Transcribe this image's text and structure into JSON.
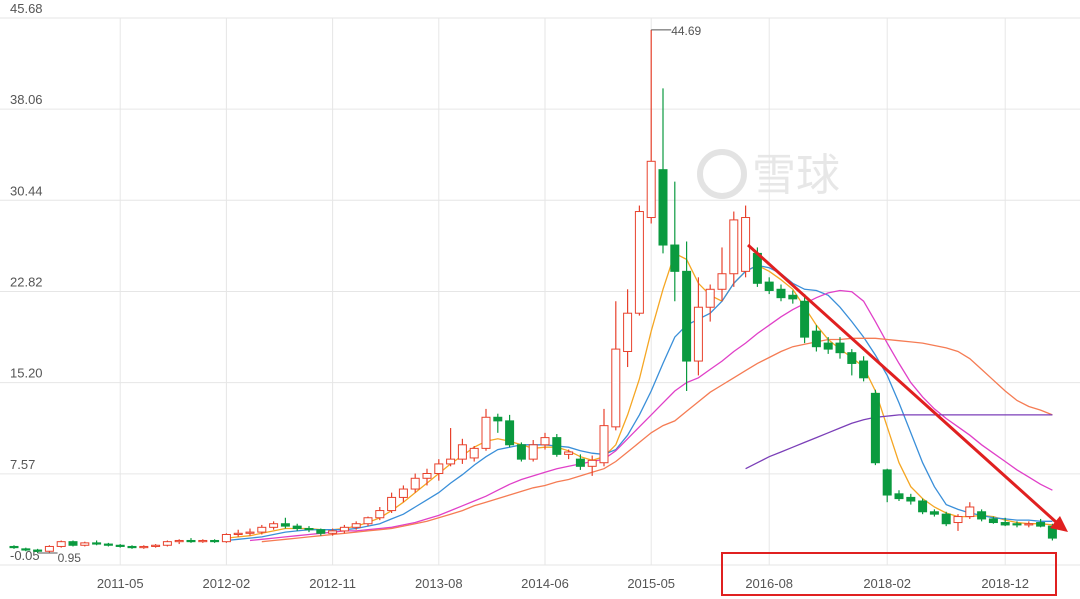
{
  "chart_data": {
    "type": "candlestick",
    "watermark": "雪球",
    "categories": [
      null,
      null,
      null,
      null,
      null,
      null,
      null,
      null,
      null,
      "2011-05",
      null,
      null,
      null,
      null,
      null,
      null,
      null,
      null,
      "2012-02",
      null,
      null,
      null,
      null,
      null,
      null,
      null,
      null,
      "2012-11",
      null,
      null,
      null,
      null,
      null,
      null,
      null,
      null,
      "2013-08",
      null,
      null,
      null,
      null,
      null,
      null,
      null,
      null,
      "2014-06",
      null,
      null,
      null,
      null,
      null,
      null,
      null,
      null,
      "2015-05",
      null,
      null,
      null,
      null,
      null,
      null,
      null,
      null,
      null,
      "2016-08",
      null,
      null,
      null,
      null,
      null,
      null,
      null,
      null,
      null,
      "2018-02",
      null,
      null,
      null,
      null,
      null,
      null,
      null,
      null,
      null,
      "2018-12",
      null,
      null,
      null,
      null
    ],
    "ohlc": [
      [
        1.5,
        1.6,
        1.3,
        1.4
      ],
      [
        1.3,
        1.4,
        1.1,
        1.2
      ],
      [
        1.2,
        1.3,
        0.95,
        1.1
      ],
      [
        1.1,
        1.6,
        1.0,
        1.5
      ],
      [
        1.5,
        2.0,
        1.4,
        1.9
      ],
      [
        1.9,
        2.0,
        1.5,
        1.6
      ],
      [
        1.6,
        1.9,
        1.5,
        1.8
      ],
      [
        1.8,
        2.0,
        1.6,
        1.7
      ],
      [
        1.7,
        1.8,
        1.5,
        1.6
      ],
      [
        1.6,
        1.7,
        1.4,
        1.5
      ],
      [
        1.5,
        1.6,
        1.3,
        1.4
      ],
      [
        1.4,
        1.6,
        1.3,
        1.5
      ],
      [
        1.5,
        1.7,
        1.4,
        1.6
      ],
      [
        1.6,
        2.0,
        1.5,
        1.9
      ],
      [
        1.9,
        2.1,
        1.7,
        2.0
      ],
      [
        2.0,
        2.2,
        1.8,
        1.9
      ],
      [
        1.9,
        2.1,
        1.8,
        2.0
      ],
      [
        2.0,
        2.1,
        1.8,
        1.9
      ],
      [
        1.9,
        2.6,
        1.8,
        2.5
      ],
      [
        2.5,
        2.9,
        2.3,
        2.6
      ],
      [
        2.6,
        3.0,
        2.4,
        2.7
      ],
      [
        2.7,
        3.3,
        2.5,
        3.1
      ],
      [
        3.1,
        3.6,
        2.9,
        3.4
      ],
      [
        3.4,
        3.9,
        3.0,
        3.2
      ],
      [
        3.2,
        3.4,
        2.8,
        3.0
      ],
      [
        3.0,
        3.2,
        2.7,
        2.9
      ],
      [
        2.9,
        3.0,
        2.4,
        2.6
      ],
      [
        2.6,
        3.0,
        2.4,
        2.8
      ],
      [
        2.8,
        3.3,
        2.6,
        3.1
      ],
      [
        3.1,
        3.6,
        2.9,
        3.4
      ],
      [
        3.4,
        4.0,
        3.2,
        3.9
      ],
      [
        3.9,
        4.8,
        3.7,
        4.5
      ],
      [
        4.5,
        6.0,
        4.3,
        5.6
      ],
      [
        5.6,
        6.6,
        5.2,
        6.3
      ],
      [
        6.3,
        7.6,
        6.0,
        7.2
      ],
      [
        7.2,
        8.0,
        6.6,
        7.6
      ],
      [
        7.6,
        8.8,
        7.0,
        8.4
      ],
      [
        8.4,
        11.4,
        8.2,
        8.8
      ],
      [
        8.8,
        10.5,
        8.4,
        10.0
      ],
      [
        8.9,
        9.9,
        8.6,
        9.7
      ],
      [
        9.7,
        13.0,
        9.5,
        12.3
      ],
      [
        12.3,
        12.6,
        11.0,
        12.0
      ],
      [
        12.0,
        12.5,
        9.8,
        10.0
      ],
      [
        10.0,
        10.2,
        8.6,
        8.8
      ],
      [
        8.8,
        10.4,
        8.6,
        10.0
      ],
      [
        10.0,
        11.0,
        9.6,
        10.6
      ],
      [
        10.6,
        10.9,
        9.0,
        9.2
      ],
      [
        9.2,
        9.6,
        8.8,
        9.4
      ],
      [
        8.8,
        9.2,
        7.9,
        8.2
      ],
      [
        8.2,
        9.1,
        7.4,
        8.7
      ],
      [
        8.5,
        13.0,
        8.2,
        11.6
      ],
      [
        11.5,
        22.0,
        11.2,
        18.0
      ],
      [
        17.8,
        23.0,
        16.5,
        21.0
      ],
      [
        21.0,
        30.0,
        20.8,
        29.5
      ],
      [
        29.0,
        44.69,
        28.5,
        33.7
      ],
      [
        33.0,
        39.8,
        26.0,
        26.7
      ],
      [
        26.7,
        32.0,
        22.0,
        24.5
      ],
      [
        24.5,
        27.0,
        14.5,
        17.0
      ],
      [
        17.0,
        24.0,
        15.8,
        21.5
      ],
      [
        21.5,
        23.4,
        20.3,
        23.0
      ],
      [
        23.0,
        26.5,
        22.0,
        24.3
      ],
      [
        24.3,
        29.5,
        23.2,
        28.8
      ],
      [
        24.5,
        30.0,
        24.0,
        29.0
      ],
      [
        26.0,
        26.5,
        23.2,
        23.5
      ],
      [
        23.6,
        24.0,
        22.6,
        22.9
      ],
      [
        23.0,
        23.4,
        22.0,
        22.3
      ],
      [
        22.5,
        22.9,
        21.8,
        22.2
      ],
      [
        22.0,
        22.6,
        18.5,
        19.0
      ],
      [
        19.5,
        20.0,
        17.8,
        18.2
      ],
      [
        18.5,
        19.0,
        17.6,
        18.0
      ],
      [
        18.5,
        19.0,
        17.2,
        17.7
      ],
      [
        17.7,
        18.0,
        15.8,
        16.8
      ],
      [
        17.0,
        17.4,
        15.3,
        15.6
      ],
      [
        14.3,
        14.6,
        8.3,
        8.5
      ],
      [
        7.9,
        8.0,
        5.2,
        5.8
      ],
      [
        5.9,
        6.2,
        5.3,
        5.5
      ],
      [
        5.6,
        5.9,
        5.0,
        5.3
      ],
      [
        5.3,
        5.5,
        4.2,
        4.4
      ],
      [
        4.4,
        4.6,
        4.0,
        4.2
      ],
      [
        4.2,
        4.4,
        3.2,
        3.4
      ],
      [
        3.5,
        4.2,
        2.8,
        4.0
      ],
      [
        4.0,
        5.2,
        3.8,
        4.8
      ],
      [
        4.4,
        4.6,
        3.6,
        3.8
      ],
      [
        3.8,
        4.0,
        3.4,
        3.5
      ],
      [
        3.5,
        3.9,
        3.2,
        3.3
      ],
      [
        3.4,
        3.6,
        3.1,
        3.3
      ],
      [
        3.3,
        3.6,
        3.1,
        3.4
      ],
      [
        3.5,
        3.8,
        3.1,
        3.2
      ],
      [
        3.2,
        3.4,
        2.0,
        2.2
      ]
    ],
    "up_color": "#e8412c",
    "down_color": "#0a9a3f",
    "series": [
      {
        "color": "#f5a623",
        "values": [
          null,
          null,
          null,
          null,
          null,
          null,
          null,
          null,
          null,
          null,
          null,
          null,
          null,
          null,
          null,
          null,
          null,
          null,
          2.2,
          2.3,
          2.4,
          2.6,
          2.8,
          3.0,
          3.0,
          3.0,
          2.9,
          2.9,
          3.0,
          3.2,
          3.5,
          3.9,
          4.5,
          5.2,
          6.0,
          6.8,
          7.6,
          8.4,
          9.1,
          9.8,
          10.3,
          10.5,
          10.3,
          10.0,
          9.7,
          9.8,
          9.8,
          9.5,
          9.0,
          8.7,
          9.0,
          10.0,
          12.5,
          15.5,
          19.5,
          23.0,
          26.0,
          25.5,
          23.5,
          22.5,
          22.0,
          23.5,
          24.5,
          25.0,
          24.5,
          23.8,
          23.0,
          21.5,
          20.0,
          18.8,
          18.0,
          17.3,
          16.5,
          14.5,
          11.5,
          8.5,
          6.5,
          5.5,
          4.8,
          4.3,
          4.0,
          4.0,
          4.1,
          4.0,
          3.7,
          3.5,
          3.4,
          3.4,
          3.3
        ]
      },
      {
        "color": "#3a8fd9",
        "values": [
          null,
          null,
          null,
          null,
          null,
          null,
          null,
          null,
          null,
          null,
          null,
          null,
          null,
          null,
          null,
          null,
          null,
          null,
          2.0,
          2.1,
          2.2,
          2.3,
          2.5,
          2.7,
          2.8,
          2.9,
          2.9,
          2.9,
          2.9,
          3.0,
          3.2,
          3.4,
          3.8,
          4.2,
          4.8,
          5.4,
          6.0,
          6.8,
          7.5,
          8.3,
          9.0,
          9.6,
          9.8,
          10.0,
          10.0,
          10.0,
          9.9,
          9.8,
          9.5,
          9.3,
          9.2,
          9.6,
          10.8,
          12.5,
          14.5,
          16.8,
          19.0,
          20.0,
          20.5,
          21.0,
          22.0,
          23.5,
          24.5,
          25.0,
          24.8,
          24.3,
          23.5,
          23.0,
          22.9,
          22.5,
          21.5,
          20.3,
          19.0,
          17.5,
          15.8,
          13.5,
          11.0,
          8.5,
          6.5,
          5.0,
          4.6,
          4.3,
          4.1,
          3.9,
          3.8,
          3.7,
          3.7,
          3.6,
          3.6
        ]
      },
      {
        "color": "#e040c8",
        "values": [
          null,
          null,
          null,
          null,
          null,
          null,
          null,
          null,
          null,
          null,
          null,
          null,
          null,
          null,
          null,
          null,
          null,
          null,
          null,
          null,
          2.0,
          2.1,
          2.2,
          2.3,
          2.4,
          2.5,
          2.6,
          2.7,
          2.8,
          2.8,
          2.9,
          3.0,
          3.1,
          3.3,
          3.5,
          3.8,
          4.1,
          4.5,
          4.9,
          5.3,
          5.7,
          6.2,
          6.7,
          7.1,
          7.4,
          7.7,
          8.0,
          8.2,
          8.4,
          8.6,
          8.8,
          9.5,
          10.5,
          11.5,
          12.5,
          13.5,
          14.5,
          15.2,
          15.6,
          16.3,
          17.0,
          17.8,
          18.5,
          19.3,
          20.0,
          20.7,
          21.3,
          21.8,
          22.3,
          22.7,
          22.9,
          22.8,
          22.0,
          20.3,
          18.5,
          16.8,
          15.2,
          14.0,
          13.0,
          12.2,
          11.5,
          10.8,
          10.0,
          9.3,
          8.6,
          7.9,
          7.3,
          6.7,
          6.2
        ]
      },
      {
        "color": "#f57c54",
        "values": [
          null,
          null,
          null,
          null,
          null,
          null,
          null,
          null,
          null,
          null,
          null,
          null,
          null,
          null,
          null,
          null,
          null,
          null,
          null,
          null,
          null,
          1.9,
          2.0,
          2.1,
          2.2,
          2.3,
          2.4,
          2.5,
          2.6,
          2.7,
          2.8,
          2.9,
          3.0,
          3.2,
          3.4,
          3.6,
          3.9,
          4.2,
          4.5,
          4.9,
          5.2,
          5.5,
          5.8,
          6.1,
          6.4,
          6.6,
          6.9,
          7.1,
          7.4,
          7.7,
          8.0,
          8.6,
          9.4,
          10.2,
          11.0,
          11.6,
          12.0,
          12.8,
          13.6,
          14.4,
          15.0,
          15.6,
          16.2,
          16.8,
          17.3,
          17.8,
          18.2,
          18.4,
          18.6,
          18.8,
          18.8,
          18.9,
          18.9,
          18.9,
          18.8,
          18.7,
          18.6,
          18.5,
          18.3,
          18.1,
          17.8,
          17.2,
          16.3,
          15.4,
          14.5,
          13.7,
          13.2,
          12.9,
          12.5
        ]
      },
      {
        "color": "#7b3fb8",
        "values": [
          null,
          null,
          null,
          null,
          null,
          null,
          null,
          null,
          null,
          null,
          null,
          null,
          null,
          null,
          null,
          null,
          null,
          null,
          null,
          null,
          null,
          null,
          null,
          null,
          null,
          null,
          null,
          null,
          null,
          null,
          null,
          null,
          null,
          null,
          null,
          null,
          null,
          null,
          null,
          null,
          null,
          null,
          null,
          null,
          null,
          null,
          null,
          null,
          null,
          null,
          null,
          null,
          null,
          null,
          null,
          null,
          null,
          null,
          null,
          null,
          null,
          null,
          8.0,
          8.5,
          9.0,
          9.4,
          9.8,
          10.2,
          10.6,
          11.0,
          11.4,
          11.8,
          12.1,
          12.3,
          12.4,
          12.5,
          12.5,
          12.5,
          12.5,
          12.5,
          12.5,
          12.5,
          12.5,
          12.5,
          12.5,
          12.5,
          12.5,
          12.5,
          12.5
        ]
      }
    ],
    "annotations": [
      {
        "value": 44.69,
        "label": "44.69"
      },
      {
        "value": 0.95,
        "label": "0.95"
      }
    ],
    "ylim": [
      -0.05,
      45.68
    ],
    "yticks": [
      -0.05,
      7.57,
      {
        "value": 15.2,
        "label": "15.20"
      },
      22.82,
      30.44,
      38.06,
      45.68
    ],
    "grid": true
  }
}
